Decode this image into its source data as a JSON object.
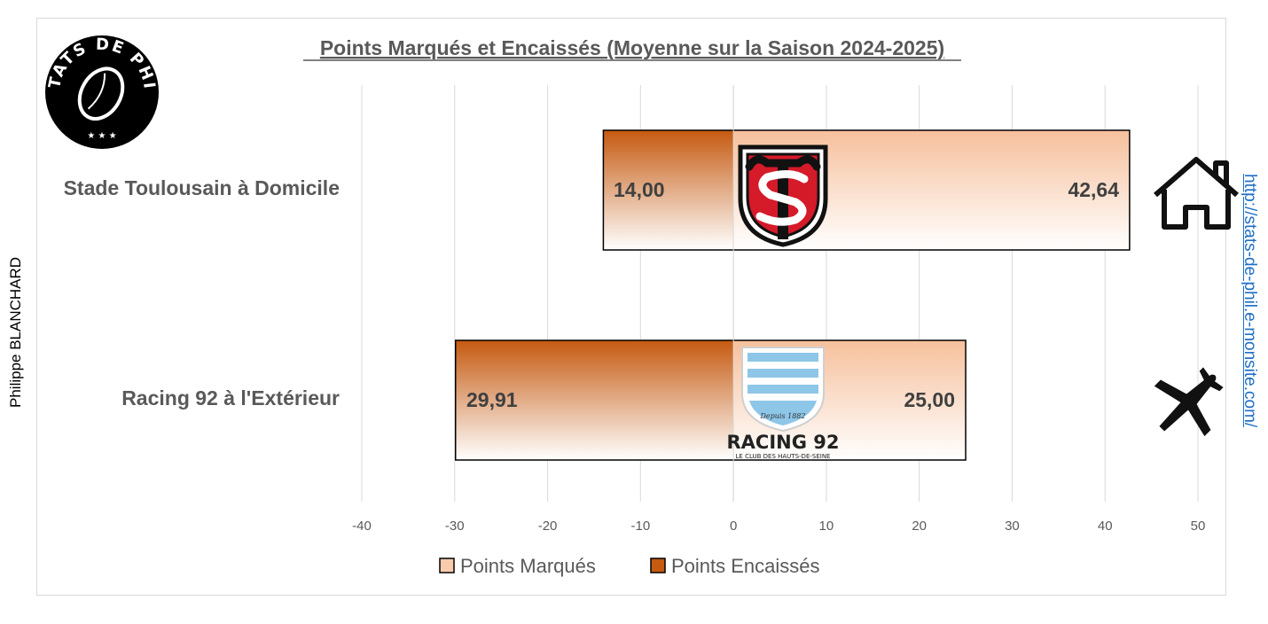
{
  "chart_data": {
    "type": "bar",
    "orientation": "horizontal",
    "stacked": true,
    "title": "Points Marqués et Encaissés (Moyenne sur la Saison 2024-2025)",
    "categories": [
      "Stade Toulousain à Domicile",
      "Racing 92 à l'Extérieur"
    ],
    "series": [
      {
        "name": "Points Marqués",
        "values": [
          42.64,
          25.0
        ],
        "labels": [
          "42,64",
          "25,00"
        ],
        "color": "#f8cbad"
      },
      {
        "name": "Points Encaissés",
        "values": [
          -14.0,
          -29.91
        ],
        "labels": [
          "14,00",
          "29,91"
        ],
        "color": "#c55a11"
      }
    ],
    "xlim": [
      -40,
      50
    ],
    "xticks": [
      -40,
      -30,
      -20,
      -10,
      0,
      10,
      20,
      30,
      40,
      50
    ],
    "xtick_labels": [
      "-40",
      "-30",
      "-20",
      "-10",
      "0",
      "10",
      "20",
      "30",
      "40",
      "50"
    ],
    "grid": true,
    "legend_position": "bottom"
  },
  "logo": {
    "text": "STATS DE PHIL"
  },
  "team_logos": {
    "racing": {
      "label": "Racing 92",
      "sublabel": "Le club des Hauts-de-Seine",
      "since": "Depuis 1882"
    }
  },
  "icons": {
    "home": "home-icon",
    "away": "airplane-icon"
  },
  "author": "Philippe BLANCHARD",
  "site_url": "http://stats-de-phil.e-monsite.com/"
}
